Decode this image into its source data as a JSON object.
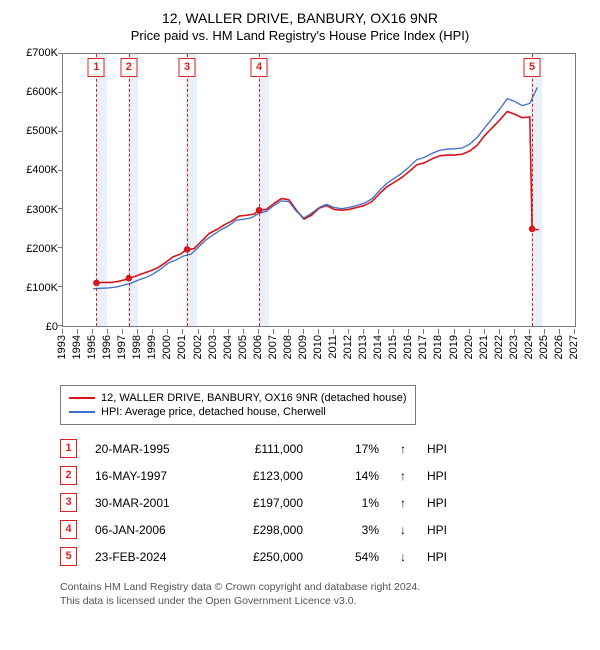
{
  "title": "12, WALLER DRIVE, BANBURY, OX16 9NR",
  "subtitle": "Price paid vs. HM Land Registry's House Price Index (HPI)",
  "chart": {
    "type": "line",
    "background_color": "#ffffff",
    "recession_band_color": "#eaf0f8",
    "axis_color": "#7a7a7a",
    "x_years": [
      1993,
      1994,
      1995,
      1996,
      1997,
      1998,
      1999,
      2000,
      2001,
      2002,
      2003,
      2004,
      2005,
      2006,
      2007,
      2008,
      2009,
      2010,
      2011,
      2012,
      2013,
      2014,
      2015,
      2016,
      2017,
      2018,
      2019,
      2020,
      2021,
      2022,
      2023,
      2024,
      2025,
      2026,
      2027
    ],
    "x_min": 1993,
    "x_max": 2027,
    "y_min": 0,
    "y_max": 700000,
    "y_ticks": [
      0,
      100000,
      200000,
      300000,
      400000,
      500000,
      600000,
      700000
    ],
    "y_tick_labels": [
      "£0",
      "£100K",
      "£200K",
      "£300K",
      "£400K",
      "£500K",
      "£600K",
      "£700K"
    ],
    "x_tick_fontsize": 11,
    "y_tick_fontsize": 11,
    "recession_bands": [
      {
        "start": 1995.2,
        "end": 1995.9
      },
      {
        "start": 1997.3,
        "end": 1998.0
      },
      {
        "start": 2001.2,
        "end": 2001.9
      },
      {
        "start": 2006.0,
        "end": 2006.7
      },
      {
        "start": 2024.1,
        "end": 2024.8
      }
    ],
    "event_markers": [
      {
        "n": "1",
        "year": 1995.22
      },
      {
        "n": "2",
        "year": 1997.37
      },
      {
        "n": "3",
        "year": 2001.24
      },
      {
        "n": "4",
        "year": 2006.02
      },
      {
        "n": "5",
        "year": 2024.15
      }
    ],
    "series": [
      {
        "name": "12, WALLER DRIVE, BANBURY, OX16 9NR (detached house)",
        "color": "#d6141b",
        "line_width": 1.6,
        "points": [
          [
            1995.2,
            111000
          ],
          [
            1995.7,
            112000
          ],
          [
            1996.2,
            112000
          ],
          [
            1996.7,
            115000
          ],
          [
            1997.2,
            120000
          ],
          [
            1997.4,
            123000
          ],
          [
            1997.8,
            128000
          ],
          [
            1998.3,
            135000
          ],
          [
            1998.8,
            142000
          ],
          [
            1999.3,
            150000
          ],
          [
            1999.8,
            163000
          ],
          [
            2000.3,
            178000
          ],
          [
            2000.8,
            185000
          ],
          [
            2001.2,
            197000
          ],
          [
            2001.7,
            199000
          ],
          [
            2002.2,
            218000
          ],
          [
            2002.7,
            238000
          ],
          [
            2003.2,
            248000
          ],
          [
            2003.7,
            260000
          ],
          [
            2004.2,
            270000
          ],
          [
            2004.7,
            283000
          ],
          [
            2005.2,
            285000
          ],
          [
            2005.7,
            288000
          ],
          [
            2006.0,
            298000
          ],
          [
            2006.5,
            300000
          ],
          [
            2007.0,
            315000
          ],
          [
            2007.5,
            328000
          ],
          [
            2008.0,
            325000
          ],
          [
            2008.5,
            298000
          ],
          [
            2009.0,
            275000
          ],
          [
            2009.5,
            285000
          ],
          [
            2010.0,
            303000
          ],
          [
            2010.5,
            310000
          ],
          [
            2011.0,
            300000
          ],
          [
            2011.5,
            298000
          ],
          [
            2012.0,
            300000
          ],
          [
            2012.5,
            305000
          ],
          [
            2013.0,
            310000
          ],
          [
            2013.5,
            320000
          ],
          [
            2014.0,
            340000
          ],
          [
            2014.5,
            358000
          ],
          [
            2015.0,
            370000
          ],
          [
            2015.5,
            382000
          ],
          [
            2016.0,
            398000
          ],
          [
            2016.5,
            415000
          ],
          [
            2017.0,
            420000
          ],
          [
            2017.5,
            430000
          ],
          [
            2018.0,
            438000
          ],
          [
            2018.5,
            440000
          ],
          [
            2019.0,
            440000
          ],
          [
            2019.5,
            442000
          ],
          [
            2020.0,
            450000
          ],
          [
            2020.5,
            465000
          ],
          [
            2021.0,
            490000
          ],
          [
            2021.5,
            510000
          ],
          [
            2022.0,
            530000
          ],
          [
            2022.5,
            552000
          ],
          [
            2023.0,
            545000
          ],
          [
            2023.5,
            536000
          ],
          [
            2024.0,
            538000
          ],
          [
            2024.15,
            250000
          ],
          [
            2024.3,
            248000
          ],
          [
            2024.6,
            248000
          ]
        ]
      },
      {
        "name": "HPI: Average price, detached house, Cherwell",
        "color": "#3b6fc9",
        "line_width": 1.3,
        "points": [
          [
            1995.0,
            96000
          ],
          [
            1995.5,
            97000
          ],
          [
            1996.0,
            98000
          ],
          [
            1996.5,
            100000
          ],
          [
            1997.0,
            105000
          ],
          [
            1997.5,
            110000
          ],
          [
            1998.0,
            118000
          ],
          [
            1998.5,
            125000
          ],
          [
            1999.0,
            134000
          ],
          [
            1999.5,
            147000
          ],
          [
            2000.0,
            162000
          ],
          [
            2000.5,
            170000
          ],
          [
            2001.0,
            180000
          ],
          [
            2001.5,
            185000
          ],
          [
            2002.0,
            203000
          ],
          [
            2002.5,
            222000
          ],
          [
            2003.0,
            235000
          ],
          [
            2003.5,
            248000
          ],
          [
            2004.0,
            258000
          ],
          [
            2004.5,
            272000
          ],
          [
            2005.0,
            275000
          ],
          [
            2005.5,
            278000
          ],
          [
            2006.0,
            290000
          ],
          [
            2006.5,
            295000
          ],
          [
            2007.0,
            310000
          ],
          [
            2007.5,
            322000
          ],
          [
            2008.0,
            320000
          ],
          [
            2008.5,
            295000
          ],
          [
            2009.0,
            278000
          ],
          [
            2009.5,
            290000
          ],
          [
            2010.0,
            305000
          ],
          [
            2010.5,
            313000
          ],
          [
            2011.0,
            305000
          ],
          [
            2011.5,
            302000
          ],
          [
            2012.0,
            305000
          ],
          [
            2012.5,
            310000
          ],
          [
            2013.0,
            316000
          ],
          [
            2013.5,
            327000
          ],
          [
            2014.0,
            348000
          ],
          [
            2014.5,
            367000
          ],
          [
            2015.0,
            380000
          ],
          [
            2015.5,
            393000
          ],
          [
            2016.0,
            410000
          ],
          [
            2016.5,
            428000
          ],
          [
            2017.0,
            434000
          ],
          [
            2017.5,
            444000
          ],
          [
            2018.0,
            452000
          ],
          [
            2018.5,
            455000
          ],
          [
            2019.0,
            456000
          ],
          [
            2019.5,
            458000
          ],
          [
            2020.0,
            468000
          ],
          [
            2020.5,
            485000
          ],
          [
            2021.0,
            510000
          ],
          [
            2021.5,
            534000
          ],
          [
            2022.0,
            558000
          ],
          [
            2022.5,
            585000
          ],
          [
            2023.0,
            578000
          ],
          [
            2023.5,
            567000
          ],
          [
            2024.0,
            573000
          ],
          [
            2024.3,
            598000
          ],
          [
            2024.5,
            614000
          ]
        ]
      }
    ],
    "sale_dots": {
      "color": "#d6141b",
      "radius": 3.3,
      "points": [
        [
          1995.22,
          111000
        ],
        [
          1997.37,
          123000
        ],
        [
          2001.24,
          197000
        ],
        [
          2006.02,
          298000
        ],
        [
          2024.15,
          250000
        ]
      ]
    }
  },
  "legend": {
    "border_color": "#7a7a7a",
    "items": [
      {
        "color": "#d6141b",
        "label": "12, WALLER DRIVE, BANBURY, OX16 9NR (detached house)"
      },
      {
        "color": "#3b6fc9",
        "label": "HPI: Average price, detached house, Cherwell"
      }
    ]
  },
  "transactions": [
    {
      "n": "1",
      "date": "20-MAR-1995",
      "price": "£111,000",
      "pct": "17%",
      "arrow": "↑",
      "hpi": "HPI"
    },
    {
      "n": "2",
      "date": "16-MAY-1997",
      "price": "£123,000",
      "pct": "14%",
      "arrow": "↑",
      "hpi": "HPI"
    },
    {
      "n": "3",
      "date": "30-MAR-2001",
      "price": "£197,000",
      "pct": "1%",
      "arrow": "↑",
      "hpi": "HPI"
    },
    {
      "n": "4",
      "date": "06-JAN-2006",
      "price": "£298,000",
      "pct": "3%",
      "arrow": "↓",
      "hpi": "HPI"
    },
    {
      "n": "5",
      "date": "23-FEB-2024",
      "price": "£250,000",
      "pct": "54%",
      "arrow": "↓",
      "hpi": "HPI"
    }
  ],
  "footnote_line1": "Contains HM Land Registry data © Crown copyright and database right 2024.",
  "footnote_line2": "This data is licensed under the Open Government Licence v3.0."
}
